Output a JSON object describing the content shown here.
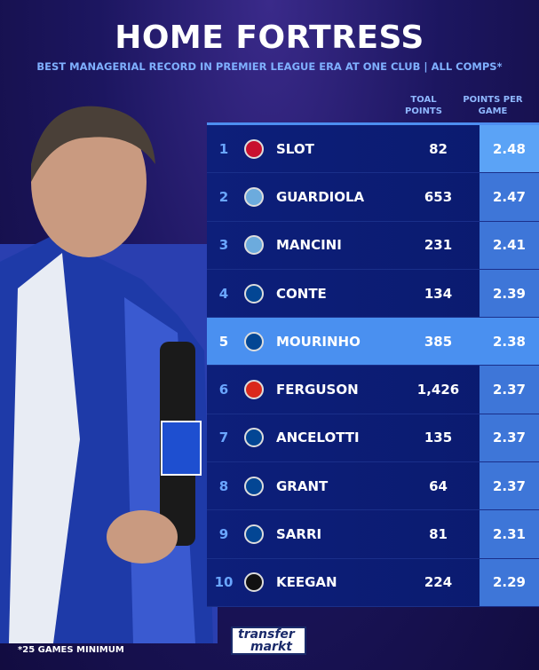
{
  "title": "HOME FORTRESS",
  "subtitle": "BEST MANAGERIAL RECORD IN PREMIER LEAGUE ERA AT ONE CLUB | ALL COMPS*",
  "footnote": "*25 GAMES MINIMUM",
  "brand": {
    "line1": "transfer",
    "line2": "markt"
  },
  "chart_data": {
    "type": "table",
    "columns": [
      "TOAL POINTS",
      "POINTS PER GAME"
    ],
    "highlight_row": "MOURINHO",
    "rows": [
      {
        "rank": "1",
        "club": "liverpool",
        "manager": "SLOT",
        "points": "82",
        "ppg": "2.48"
      },
      {
        "rank": "2",
        "club": "manchester-city",
        "manager": "GUARDIOLA",
        "points": "653",
        "ppg": "2.47"
      },
      {
        "rank": "3",
        "club": "manchester-city",
        "manager": "MANCINI",
        "points": "231",
        "ppg": "2.41"
      },
      {
        "rank": "4",
        "club": "chelsea",
        "manager": "CONTE",
        "points": "134",
        "ppg": "2.39"
      },
      {
        "rank": "5",
        "club": "chelsea",
        "manager": "MOURINHO",
        "points": "385",
        "ppg": "2.38"
      },
      {
        "rank": "6",
        "club": "manchester-united",
        "manager": "FERGUSON",
        "points": "1,426",
        "ppg": "2.37"
      },
      {
        "rank": "7",
        "club": "chelsea",
        "manager": "ANCELOTTI",
        "points": "135",
        "ppg": "2.37"
      },
      {
        "rank": "8",
        "club": "chelsea",
        "manager": "GRANT",
        "points": "64",
        "ppg": "2.37"
      },
      {
        "rank": "9",
        "club": "chelsea",
        "manager": "SARRI",
        "points": "81",
        "ppg": "2.31"
      },
      {
        "rank": "10",
        "club": "newcastle",
        "manager": "KEEGAN",
        "points": "224",
        "ppg": "2.29"
      }
    ]
  },
  "club_colors": {
    "liverpool": "#c8102e",
    "manchester-city": "#6cabdd",
    "chelsea": "#034694",
    "manchester-united": "#da291c",
    "newcastle": "#111111"
  }
}
